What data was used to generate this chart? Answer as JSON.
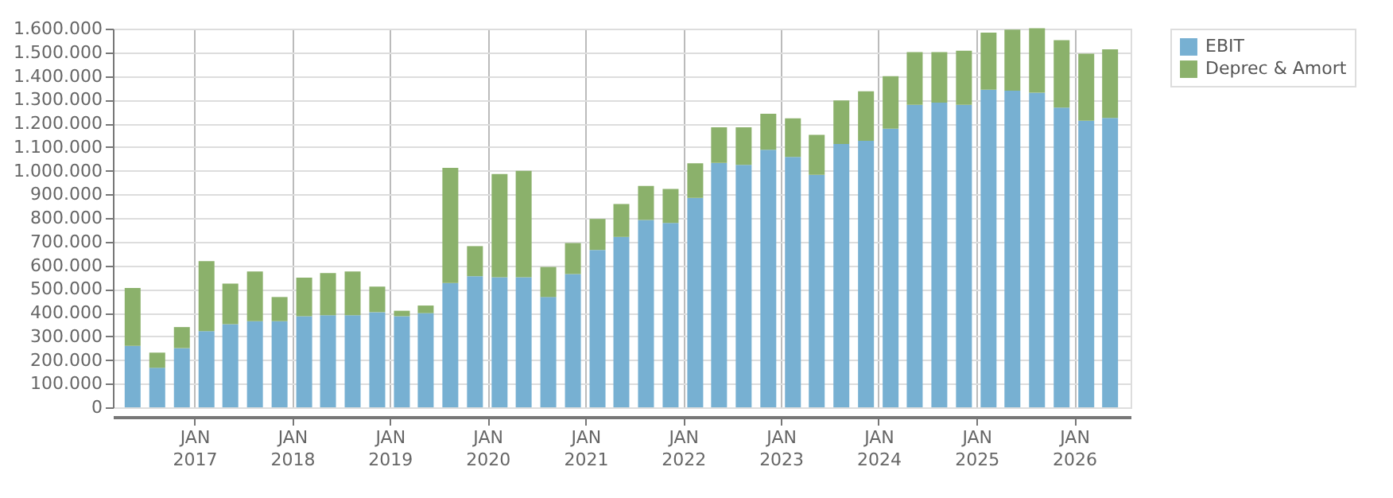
{
  "chart_data": {
    "type": "bar",
    "stacked": true,
    "legend": "top right",
    "grid": true,
    "x": [
      "2016-05-15",
      "2016-08-15",
      "2016-11-15",
      "2017-02-15",
      "2017-05-15",
      "2017-08-15",
      "2017-11-15",
      "2018-02-15",
      "2018-05-15",
      "2018-08-15",
      "2018-11-15",
      "2019-02-15",
      "2019-05-15",
      "2019-08-15",
      "2019-11-15",
      "2020-02-15",
      "2020-05-15",
      "2020-08-15",
      "2020-11-15",
      "2021-02-15",
      "2021-05-15",
      "2021-08-15",
      "2021-11-15",
      "2022-02-15",
      "2022-05-15",
      "2022-08-15",
      "2022-11-15",
      "2023-02-15",
      "2023-05-15",
      "2023-08-15",
      "2023-11-15",
      "2024-02-15",
      "2024-05-15",
      "2024-08-15",
      "2024-11-15",
      "2025-02-15",
      "2025-05-15",
      "2025-08-15",
      "2025-11-15",
      "2026-02-15",
      "2026-05-15"
    ],
    "series": [
      {
        "name": "EBIT",
        "color": "#77b0d2",
        "values": [
          260000,
          167000,
          250000,
          322000,
          351000,
          364000,
          364000,
          385000,
          389000,
          389000,
          402000,
          385000,
          398000,
          525000,
          554000,
          550000,
          550000,
          466000,
          563000,
          665000,
          720000,
          792000,
          779000,
          885000,
          1033000,
          1024000,
          1088000,
          1058000,
          982000,
          1113000,
          1126000,
          1177000,
          1278000,
          1287000,
          1278000,
          1342000,
          1338000,
          1329000,
          1266000,
          1211000,
          1223000
        ]
      },
      {
        "name": "Deprec & Amort",
        "color": "#8bb16b",
        "values": [
          244000,
          64000,
          89000,
          296000,
          172000,
          210000,
          102000,
          163000,
          178000,
          185000,
          108000,
          23000,
          32000,
          487000,
          127000,
          436000,
          449000,
          127000,
          131000,
          131000,
          139000,
          143000,
          144000,
          146000,
          150000,
          159000,
          152000,
          163000,
          169000,
          184000,
          209000,
          222000,
          223000,
          214000,
          229000,
          241000,
          258000,
          273000,
          285000,
          283000,
          290000
        ]
      }
    ],
    "xlim": [
      "2016-04-01",
      "2026-07-01"
    ],
    "xticks": [
      {
        "value": "2017-01-01",
        "label": "JAN 2017"
      },
      {
        "value": "2018-01-01",
        "label": "JAN 2018"
      },
      {
        "value": "2019-01-01",
        "label": "JAN 2019"
      },
      {
        "value": "2020-01-01",
        "label": "JAN 2020"
      },
      {
        "value": "2021-01-01",
        "label": "JAN 2021"
      },
      {
        "value": "2022-01-01",
        "label": "JAN 2022"
      },
      {
        "value": "2023-01-01",
        "label": "JAN 2023"
      },
      {
        "value": "2024-01-01",
        "label": "JAN 2024"
      },
      {
        "value": "2025-01-01",
        "label": "JAN 2025"
      },
      {
        "value": "2026-01-01",
        "label": "JAN 2026"
      }
    ],
    "ylim": [
      0,
      1600000
    ],
    "yticks": [
      0,
      {
        "value": 100000,
        "label": "100.000"
      },
      {
        "value": 200000,
        "label": "200.000"
      },
      {
        "value": 300000,
        "label": "300.000"
      },
      {
        "value": 400000,
        "label": "400.000"
      },
      {
        "value": 500000,
        "label": "500.000"
      },
      {
        "value": 600000,
        "label": "600.000"
      },
      {
        "value": 700000,
        "label": "700.000"
      },
      {
        "value": 800000,
        "label": "800.000"
      },
      {
        "value": 900000,
        "label": "900.000"
      },
      {
        "value": 1000000,
        "label": "1.000.000"
      },
      {
        "value": 1100000,
        "label": "1.100.000"
      },
      {
        "value": 1200000,
        "label": "1.200.000"
      },
      {
        "value": 1300000,
        "label": "1.300.000"
      },
      {
        "value": 1400000,
        "label": "1.400.000"
      },
      {
        "value": 1500000,
        "label": "1.500.000"
      },
      {
        "value": 1600000,
        "label": "1.600.000"
      }
    ]
  }
}
